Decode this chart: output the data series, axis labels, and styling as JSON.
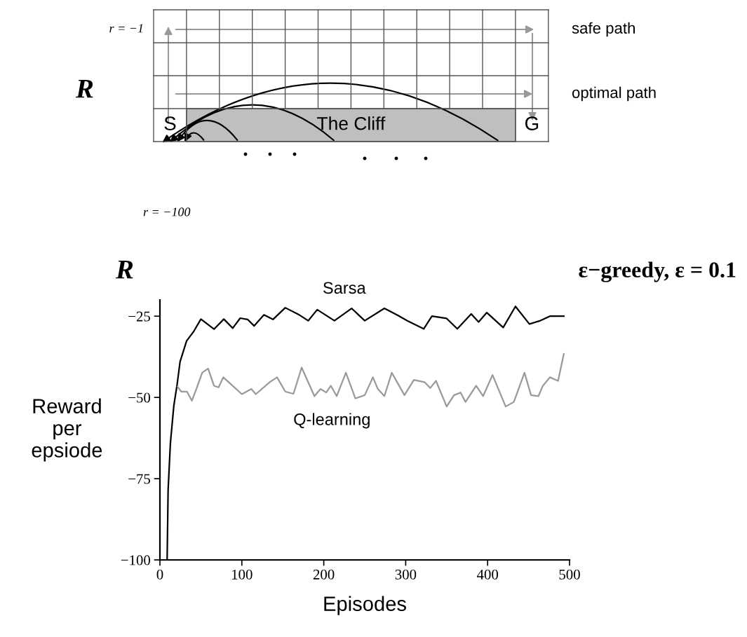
{
  "chart_data": [
    {
      "type": "other",
      "annotations": [
        "R",
        "r = −1",
        "safe path",
        "optimal path",
        "S",
        "The Cliff",
        "G",
        "r = −100"
      ]
    },
    {
      "type": "line",
      "title": "ε−greedy, ε = 0.1",
      "annotations": [
        "R"
      ],
      "xlabel": "Episodes",
      "ylabel": "Reward\nper\nepsiode",
      "xlim": [
        0,
        500
      ],
      "ylim": [
        -100,
        -20
      ],
      "xticks": [
        0,
        100,
        200,
        300,
        400,
        500
      ],
      "yticks": [
        {
          "value": -25,
          "label": "−25"
        },
        {
          "value": -50,
          "label": "−50"
        },
        {
          "value": -75,
          "label": "−75"
        },
        {
          "value": -100,
          "label": "−100"
        }
      ],
      "series": [
        {
          "name": "Sarsa",
          "color": "#000000",
          "x": [
            8.8,
            10,
            12.8,
            17,
            21,
            24.6,
            32.6,
            41,
            50,
            66,
            78,
            88.8,
            98,
            107,
            115,
            127,
            138,
            153,
            170,
            181,
            192,
            213,
            234,
            250,
            274,
            290,
            302,
            322,
            332,
            350,
            363,
            380,
            389,
            399,
            419,
            434,
            451,
            463,
            476,
            493
          ],
          "values": [
            -100,
            -78.5,
            -64,
            -52.5,
            -46,
            -39,
            -32.6,
            -29.8,
            -25.9,
            -29,
            -25.9,
            -28.7,
            -25.6,
            -26,
            -28,
            -24.6,
            -26,
            -22.4,
            -24.6,
            -26.4,
            -23,
            -26.4,
            -22.6,
            -26.4,
            -22.6,
            -24.7,
            -26.4,
            -28.9,
            -25,
            -25.7,
            -28.9,
            -24.3,
            -26.8,
            -23.9,
            -28.5,
            -22,
            -27.4,
            -26.5,
            -25,
            -25
          ]
        },
        {
          "name": "Q-learning",
          "color": "#999999",
          "x": [
            21.6,
            26,
            33,
            39,
            44.5,
            51.6,
            58.8,
            66,
            71.6,
            77.3,
            88.7,
            100,
            111.6,
            117,
            134,
            143,
            153,
            163,
            173,
            188.6,
            196,
            203,
            208.6,
            215.8,
            227,
            238.6,
            250,
            260,
            266,
            274,
            283,
            298.5,
            310,
            323,
            330,
            337,
            350,
            359,
            367,
            373,
            386,
            394.5,
            406,
            422,
            432,
            445,
            453,
            462,
            467.5,
            476,
            486,
            493
          ],
          "values": [
            -46.7,
            -48.2,
            -48.2,
            -51,
            -47.4,
            -42.4,
            -41.1,
            -46.4,
            -46.9,
            -43.8,
            -46.4,
            -49,
            -47.4,
            -49,
            -45.3,
            -43.8,
            -48.2,
            -48.9,
            -40.8,
            -49.6,
            -47.4,
            -48.5,
            -46.4,
            -49.6,
            -42.4,
            -50.3,
            -49.3,
            -43.8,
            -47.4,
            -49.6,
            -42.4,
            -49.3,
            -44.6,
            -45.3,
            -47.1,
            -44.9,
            -52.8,
            -49.3,
            -48.5,
            -51.4,
            -46.4,
            -49.6,
            -43.1,
            -52.8,
            -51.4,
            -42.4,
            -49.3,
            -49.6,
            -46.4,
            -43.8,
            -44.9,
            -36.6
          ]
        }
      ]
    }
  ]
}
